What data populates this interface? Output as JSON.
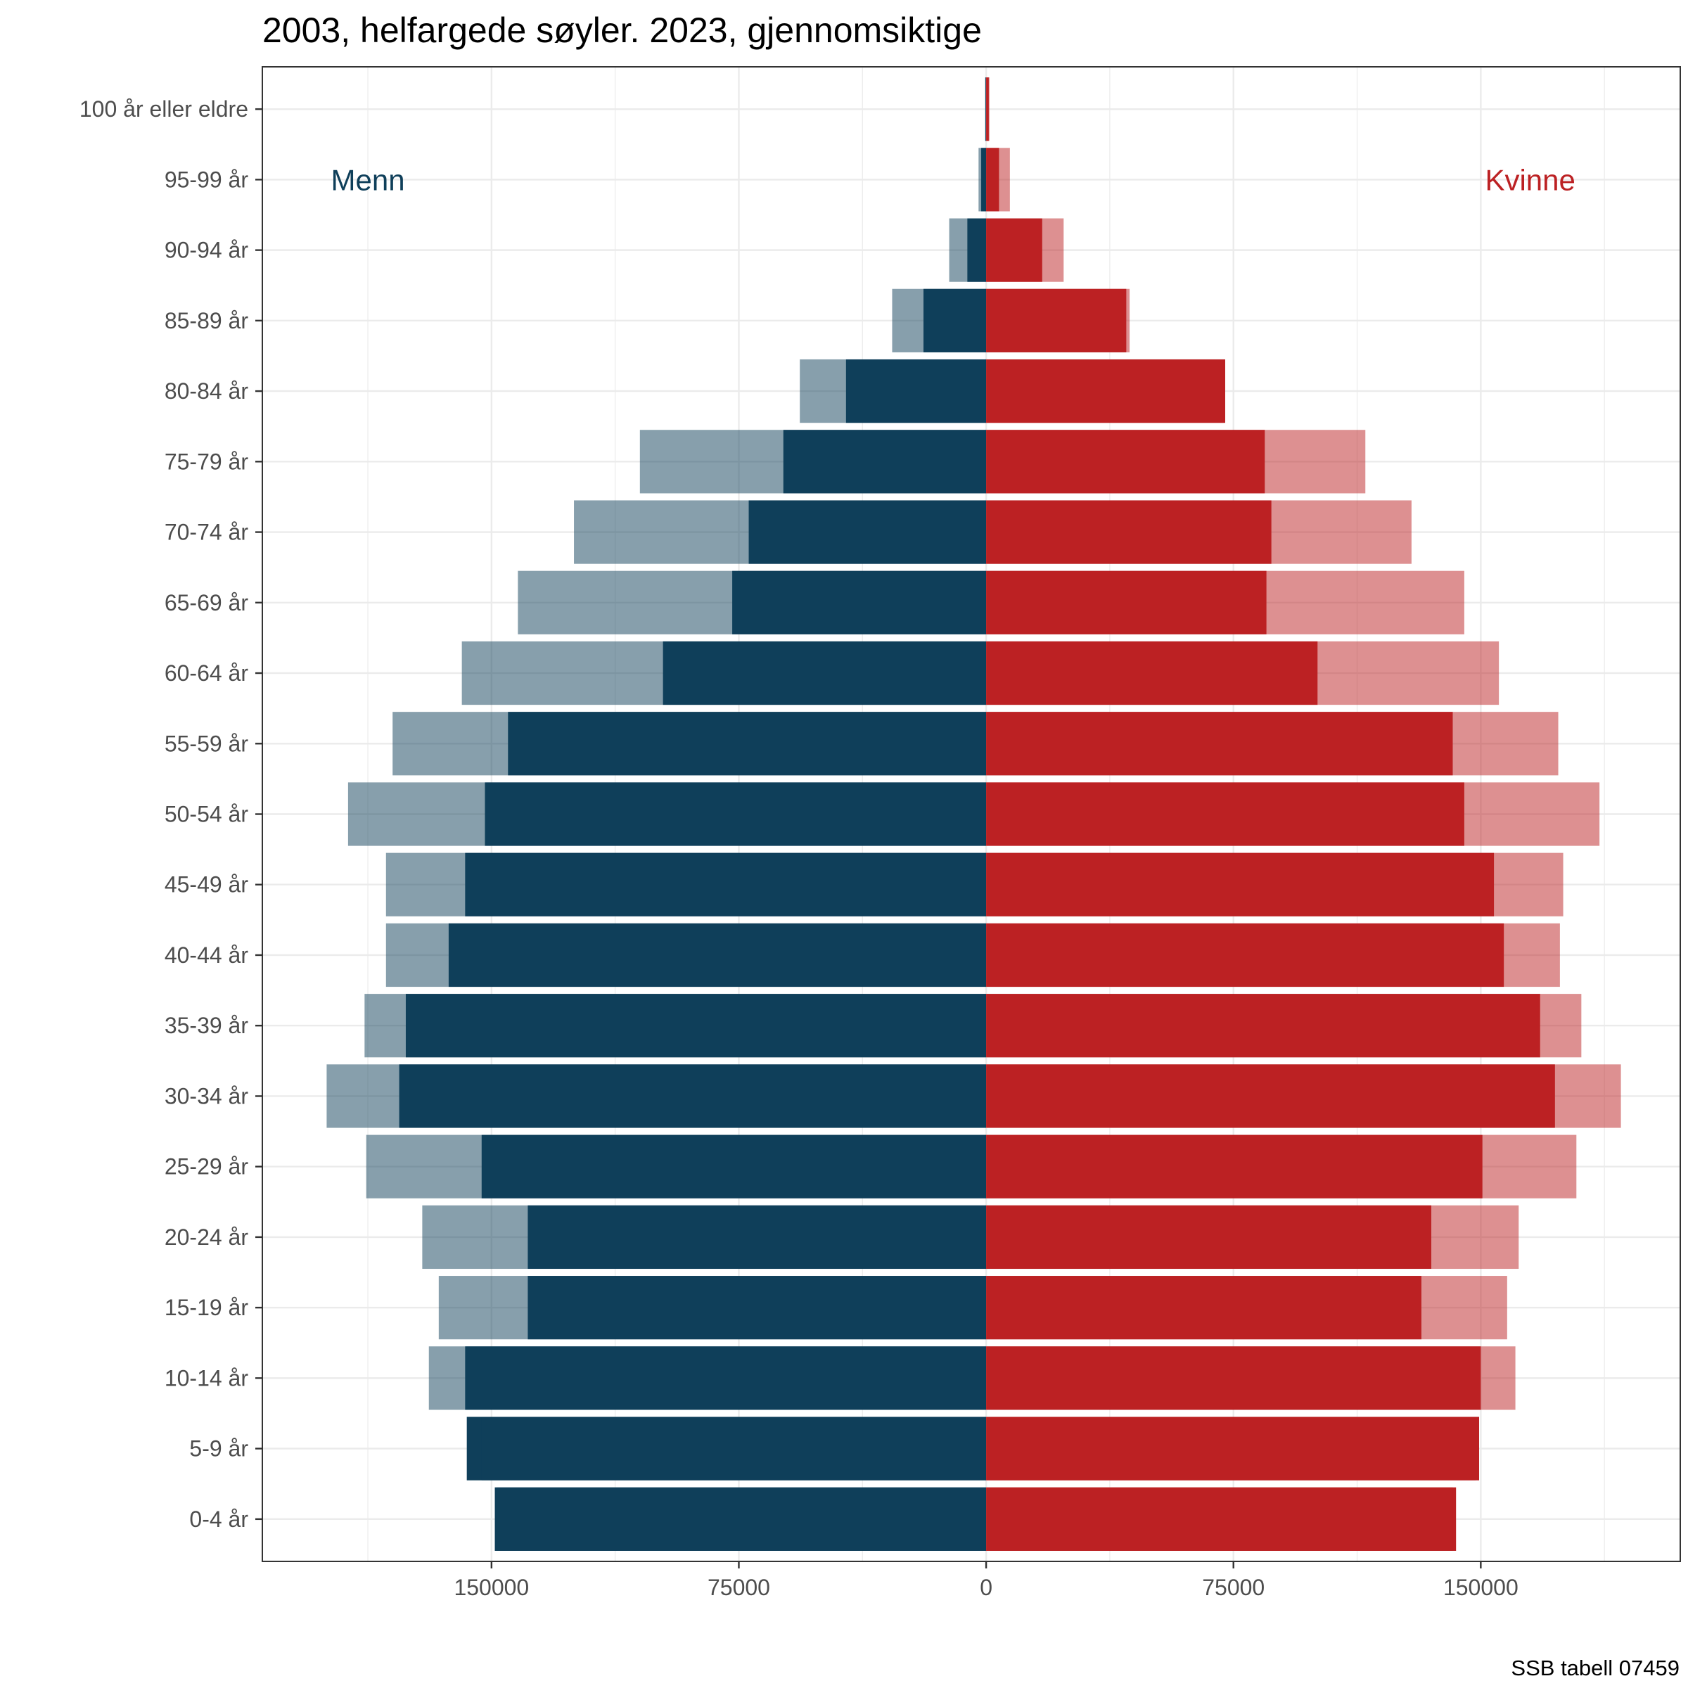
{
  "chart_data": {
    "type": "bar",
    "orientation": "horizontal",
    "title": "2003, helfargede søyler. 2023, gjennomsiktige",
    "caption": "SSB tabell 07459",
    "categories": [
      "0-4 år",
      "5-9 år",
      "10-14 år",
      "15-19 år",
      "20-24 år",
      "25-29 år",
      "30-34 år",
      "35-39 år",
      "40-44 år",
      "45-49 år",
      "50-54 år",
      "55-59 år",
      "60-64 år",
      "65-69 år",
      "70-74 år",
      "75-79 år",
      "80-84 år",
      "85-89 år",
      "90-94 år",
      "95-99 år",
      "100 år eller eldre"
    ],
    "series": [
      {
        "side": "left",
        "year": 2003,
        "opacity": 1.0,
        "color": "#0f3f5a",
        "values": [
          149000,
          157500,
          158000,
          139000,
          139000,
          153000,
          178000,
          176000,
          163000,
          158000,
          152000,
          145000,
          98000,
          77000,
          72000,
          61500,
          42500,
          19000,
          5700,
          1500,
          200
        ]
      },
      {
        "side": "left",
        "year": 2023,
        "opacity": 0.5,
        "color": "#0f3f5a",
        "values": [
          148500,
          153000,
          169000,
          166000,
          171000,
          188000,
          200000,
          188500,
          182000,
          182000,
          193500,
          180000,
          159000,
          142000,
          125000,
          105000,
          56500,
          28500,
          11200,
          2300,
          300
        ]
      },
      {
        "side": "right",
        "year": 2003,
        "opacity": 1.0,
        "color": "#bc2123",
        "values": [
          142500,
          149500,
          150000,
          132000,
          135000,
          150500,
          172500,
          168000,
          157000,
          154000,
          145000,
          141500,
          100500,
          85000,
          86500,
          84500,
          72500,
          42500,
          17000,
          3900,
          800
        ]
      },
      {
        "side": "right",
        "year": 2023,
        "opacity": 0.5,
        "color": "#bc2123",
        "values": [
          141500,
          148500,
          160500,
          158000,
          161500,
          179000,
          192500,
          180500,
          174000,
          175000,
          186000,
          173500,
          155500,
          145000,
          129000,
          115000,
          72000,
          43500,
          23500,
          7200,
          1000
        ]
      }
    ],
    "x_ticks": [
      {
        "value": -150000,
        "label": "150000"
      },
      {
        "value": -75000,
        "label": "75000"
      },
      {
        "value": 0,
        "label": "0"
      },
      {
        "value": 75000,
        "label": "75000"
      },
      {
        "value": 150000,
        "label": "150000"
      }
    ],
    "x_minor": [
      -187500,
      -112500,
      -37500,
      37500,
      112500,
      187500
    ],
    "xlim": [
      -219500,
      210500
    ],
    "annotations": [
      {
        "text": "Menn",
        "color": "#0f3f5a",
        "x": -187500,
        "y": "95-99 år"
      },
      {
        "text": "Kvinne",
        "color": "#bc2123",
        "x": 165000,
        "y": "95-99 år"
      }
    ],
    "grid": true,
    "legend": "none"
  }
}
